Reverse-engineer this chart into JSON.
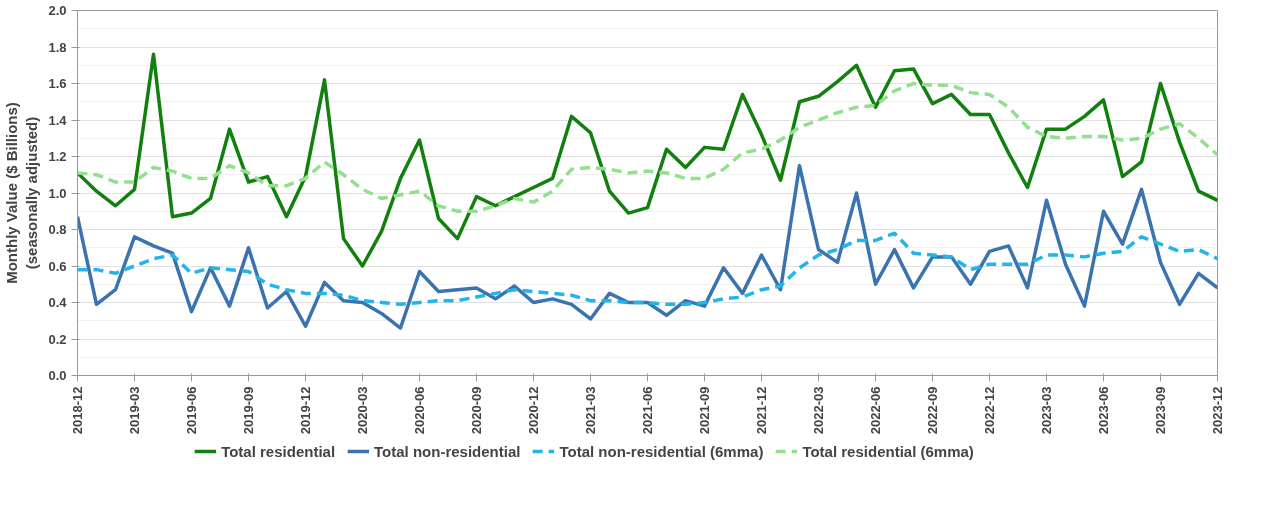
{
  "chart_data": {
    "type": "line",
    "ylabel": "Monthly Value ($ Billions)\n(seasonally adjusted)",
    "x": [
      "2018-12",
      "2019-01",
      "2019-02",
      "2019-03",
      "2019-04",
      "2019-05",
      "2019-06",
      "2019-07",
      "2019-08",
      "2019-09",
      "2019-10",
      "2019-11",
      "2019-12",
      "2020-01",
      "2020-02",
      "2020-03",
      "2020-04",
      "2020-05",
      "2020-06",
      "2020-07",
      "2020-08",
      "2020-09",
      "2020-10",
      "2020-11",
      "2020-12",
      "2021-01",
      "2021-02",
      "2021-03",
      "2021-04",
      "2021-05",
      "2021-06",
      "2021-07",
      "2021-08",
      "2021-09",
      "2021-10",
      "2021-11",
      "2021-12",
      "2022-01",
      "2022-02",
      "2022-03",
      "2022-04",
      "2022-05",
      "2022-06",
      "2022-07",
      "2022-08",
      "2022-09",
      "2022-10",
      "2022-11",
      "2022-12",
      "2023-01",
      "2023-02",
      "2023-03",
      "2023-04",
      "2023-05",
      "2023-06",
      "2023-07",
      "2023-08",
      "2023-09",
      "2023-10",
      "2023-11",
      "2023-12"
    ],
    "series": [
      {
        "name": "Total residential",
        "color": "#11800f",
        "line_style": "solid",
        "values": [
          1.11,
          1.01,
          0.93,
          1.02,
          1.76,
          0.87,
          0.89,
          0.97,
          1.35,
          1.06,
          1.09,
          0.87,
          1.09,
          1.62,
          0.75,
          0.6,
          0.79,
          1.08,
          1.29,
          0.86,
          0.75,
          0.98,
          0.93,
          0.98,
          1.03,
          1.08,
          1.42,
          1.33,
          1.01,
          0.89,
          0.92,
          1.24,
          1.14,
          1.25,
          1.24,
          1.54,
          1.32,
          1.07,
          1.5,
          1.53,
          1.61,
          1.7,
          1.47,
          1.67,
          1.68,
          1.49,
          1.54,
          1.43,
          1.43,
          1.22,
          1.03,
          1.35,
          1.35,
          1.42,
          1.51,
          1.09,
          1.17,
          1.6,
          1.28,
          1.01,
          0.96
        ]
      },
      {
        "name": "Total non-residential",
        "color": "#3a73ad",
        "line_style": "solid",
        "values": [
          0.87,
          0.39,
          0.47,
          0.76,
          0.71,
          0.67,
          0.35,
          0.59,
          0.38,
          0.7,
          0.37,
          0.46,
          0.27,
          0.51,
          0.41,
          0.4,
          0.34,
          0.26,
          0.57,
          0.46,
          0.47,
          0.48,
          0.42,
          0.49,
          0.4,
          0.42,
          0.39,
          0.31,
          0.45,
          0.4,
          0.4,
          0.33,
          0.41,
          0.38,
          0.59,
          0.45,
          0.66,
          0.47,
          1.15,
          0.69,
          0.62,
          1.0,
          0.5,
          0.69,
          0.48,
          0.65,
          0.65,
          0.5,
          0.68,
          0.71,
          0.48,
          0.96,
          0.61,
          0.38,
          0.9,
          0.72,
          1.02,
          0.62,
          0.39,
          0.56,
          0.48
        ]
      },
      {
        "name": "Total non-residential (6mma)",
        "color": "#21b5e8",
        "line_style": "dashed",
        "values": [
          0.58,
          0.58,
          0.56,
          0.6,
          0.64,
          0.66,
          0.56,
          0.59,
          0.58,
          0.57,
          0.5,
          0.47,
          0.45,
          0.45,
          0.44,
          0.41,
          0.4,
          0.39,
          0.4,
          0.41,
          0.41,
          0.43,
          0.45,
          0.47,
          0.46,
          0.45,
          0.44,
          0.41,
          0.41,
          0.4,
          0.4,
          0.39,
          0.39,
          0.4,
          0.42,
          0.43,
          0.47,
          0.49,
          0.59,
          0.66,
          0.69,
          0.74,
          0.74,
          0.78,
          0.67,
          0.66,
          0.65,
          0.58,
          0.61,
          0.61,
          0.61,
          0.66,
          0.66,
          0.65,
          0.67,
          0.68,
          0.76,
          0.72,
          0.68,
          0.69,
          0.64
        ]
      },
      {
        "name": "Total residential (6mma)",
        "color": "#92e08e",
        "line_style": "dashed",
        "values": [
          1.11,
          1.1,
          1.06,
          1.06,
          1.14,
          1.12,
          1.08,
          1.08,
          1.15,
          1.11,
          1.04,
          1.04,
          1.08,
          1.17,
          1.1,
          1.02,
          0.97,
          0.99,
          1.01,
          0.93,
          0.9,
          0.9,
          0.93,
          0.97,
          0.95,
          1.01,
          1.13,
          1.14,
          1.13,
          1.11,
          1.12,
          1.11,
          1.08,
          1.08,
          1.13,
          1.22,
          1.24,
          1.29,
          1.36,
          1.4,
          1.44,
          1.47,
          1.48,
          1.56,
          1.6,
          1.59,
          1.59,
          1.55,
          1.54,
          1.47,
          1.36,
          1.31,
          1.3,
          1.31,
          1.31,
          1.29,
          1.3,
          1.35,
          1.38,
          1.3,
          1.21
        ]
      }
    ],
    "xlim": [
      "2018-12",
      "2023-12"
    ],
    "xticks": [
      "2018-12",
      "2019-03",
      "2019-06",
      "2019-09",
      "2019-12",
      "2020-03",
      "2020-06",
      "2020-09",
      "2020-12",
      "2021-03",
      "2021-06",
      "2021-09",
      "2021-12",
      "2022-03",
      "2022-06",
      "2022-09",
      "2022-12",
      "2023-03",
      "2023-06",
      "2023-09",
      "2023-12"
    ],
    "ylim": [
      0,
      2.0
    ],
    "yticks": [
      {
        "value": 0,
        "label": "0.0"
      },
      0.2,
      0.4,
      0.6,
      0.8,
      {
        "value": 1.0,
        "label": "1.0"
      },
      1.2,
      1.4,
      1.6,
      1.8,
      {
        "value": 2.0,
        "label": "2.0"
      }
    ],
    "grid": "y",
    "legend": "bottom"
  }
}
